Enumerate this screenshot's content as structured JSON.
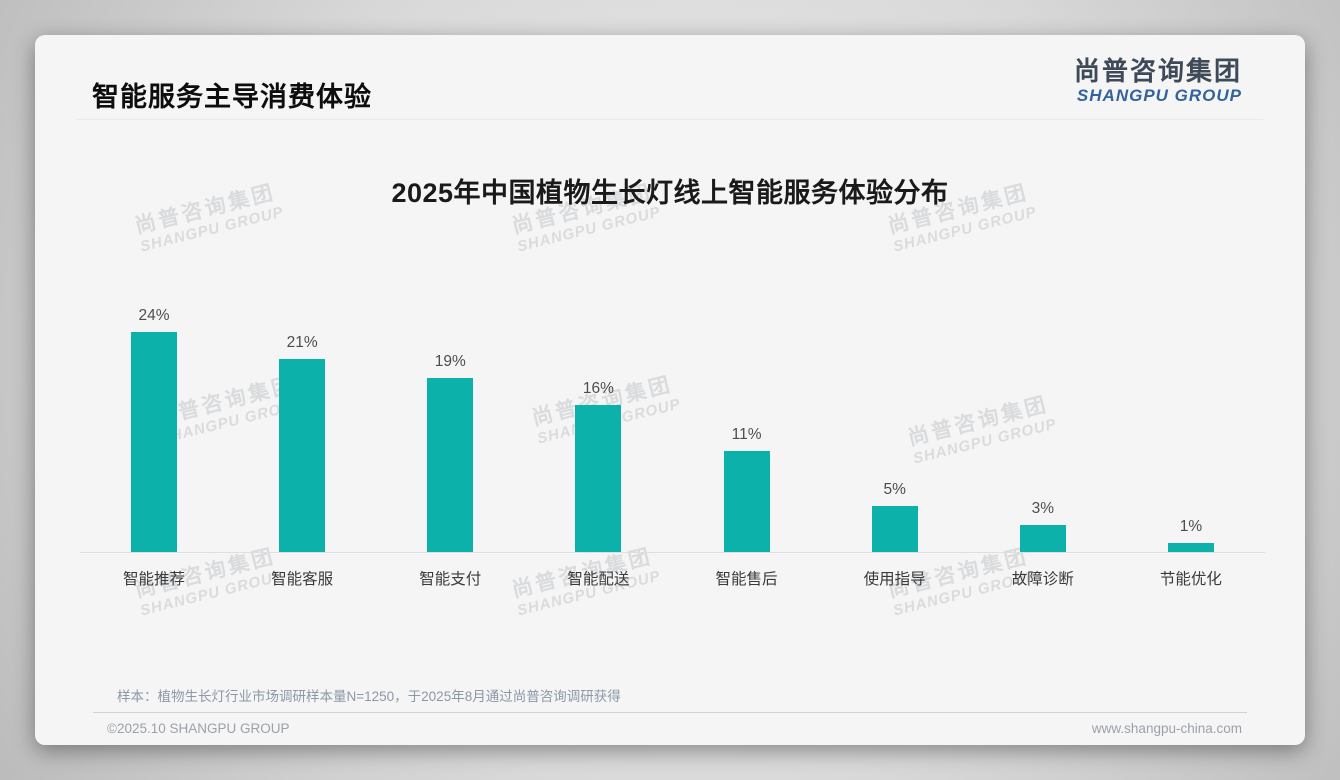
{
  "page": {
    "header": {
      "title": "智能服务主导消费体验"
    },
    "logo": {
      "cn": "尚普咨询集团",
      "en": "SHANGPU GROUP"
    },
    "watermark": {
      "line1": "尚普咨询集团",
      "line2": "SHANGPU GROUP"
    },
    "note": "样本：植物生长灯行业市场调研样本量N=1250，于2025年8月通过尚普咨询调研获得",
    "footer": {
      "left": "©2025.10 SHANGPU GROUP",
      "right": "www.shangpu-china.com"
    }
  },
  "chart_data": {
    "type": "bar",
    "title": "2025年中国植物生长灯线上智能服务体验分布",
    "categories": [
      "智能推荐",
      "智能客服",
      "智能支付",
      "智能配送",
      "智能售后",
      "使用指导",
      "故障诊断",
      "节能优化"
    ],
    "values": [
      24,
      21,
      19,
      16,
      11,
      5,
      3,
      1
    ],
    "value_labels": [
      "24%",
      "21%",
      "19%",
      "16%",
      "11%",
      "5%",
      "3%",
      "1%"
    ],
    "unit": "%",
    "xlabel": "",
    "ylabel": "",
    "ylim": [
      0,
      26
    ],
    "grid": false,
    "legend": false,
    "bar_color": "#0cb1a9",
    "label_color": "#4d4d4d",
    "axis_line_color": "#dfdfdf"
  }
}
